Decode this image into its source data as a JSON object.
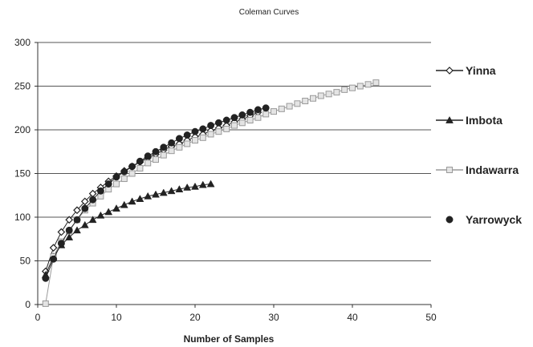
{
  "chart_data": {
    "type": "line",
    "title": "Coleman Curves",
    "xlabel": "Number of Samples",
    "ylabel": "",
    "xlim": [
      0,
      50
    ],
    "ylim": [
      0,
      300
    ],
    "x_ticks": [
      "0",
      "10",
      "20",
      "30",
      "40",
      "50"
    ],
    "y_ticks": [
      "0",
      "50",
      "100",
      "150",
      "200",
      "250",
      "300"
    ],
    "grid": "horizontal",
    "legend_position": "right",
    "series": [
      {
        "name": "Yinna",
        "marker": "diamond-open",
        "color": "#222222",
        "x": [
          1,
          2,
          3,
          4,
          5,
          6,
          7,
          8,
          9,
          10,
          11,
          12,
          13,
          14,
          15,
          16,
          17,
          18,
          19,
          20,
          21,
          22,
          23,
          24,
          25,
          26,
          27,
          28
        ],
        "y": [
          38,
          65,
          83,
          97,
          108,
          118,
          127,
          134,
          141,
          147,
          153,
          158,
          163,
          168,
          172,
          177,
          181,
          184,
          188,
          192,
          195,
          199,
          202,
          205,
          209,
          212,
          216,
          220
        ]
      },
      {
        "name": "Imbota",
        "marker": "triangle-filled",
        "color": "#222222",
        "x": [
          1,
          2,
          3,
          4,
          5,
          6,
          7,
          8,
          9,
          10,
          11,
          12,
          13,
          14,
          15,
          16,
          17,
          18,
          19,
          20,
          21,
          22
        ],
        "y": [
          34,
          55,
          68,
          77,
          85,
          91,
          97,
          102,
          106,
          110,
          114,
          118,
          121,
          124,
          126,
          128,
          130,
          132,
          134,
          135,
          137,
          138
        ]
      },
      {
        "name": "Indawarra",
        "marker": "square-open",
        "color": "#9a9a9a",
        "x": [
          1,
          2,
          3,
          4,
          5,
          6,
          7,
          8,
          9,
          10,
          11,
          12,
          13,
          14,
          15,
          16,
          17,
          18,
          19,
          20,
          21,
          22,
          23,
          24,
          25,
          26,
          27,
          28,
          29,
          30,
          31,
          32,
          33,
          34,
          35,
          36,
          37,
          38,
          39,
          40,
          41,
          42,
          43
        ],
        "y": [
          1,
          55,
          72,
          84,
          97,
          108,
          116,
          124,
          132,
          138,
          144,
          150,
          156,
          162,
          166,
          171,
          176,
          180,
          184,
          188,
          191,
          195,
          198,
          201,
          205,
          208,
          211,
          214,
          218,
          221,
          224,
          227,
          230,
          233,
          236,
          239,
          241,
          243,
          246,
          248,
          250,
          252,
          254
        ]
      },
      {
        "name": "Yarrowyck",
        "marker": "circle-filled",
        "color": "#222222",
        "x": [
          1,
          2,
          3,
          4,
          5,
          6,
          7,
          8,
          9,
          10,
          11,
          12,
          13,
          14,
          15,
          16,
          17,
          18,
          19,
          20,
          21,
          22,
          23,
          24,
          25,
          26,
          27,
          28,
          29
        ],
        "y": [
          30,
          52,
          70,
          85,
          97,
          110,
          120,
          130,
          138,
          146,
          152,
          158,
          164,
          170,
          175,
          180,
          185,
          190,
          194,
          198,
          201,
          205,
          208,
          211,
          214,
          217,
          220,
          223,
          225
        ]
      }
    ]
  }
}
